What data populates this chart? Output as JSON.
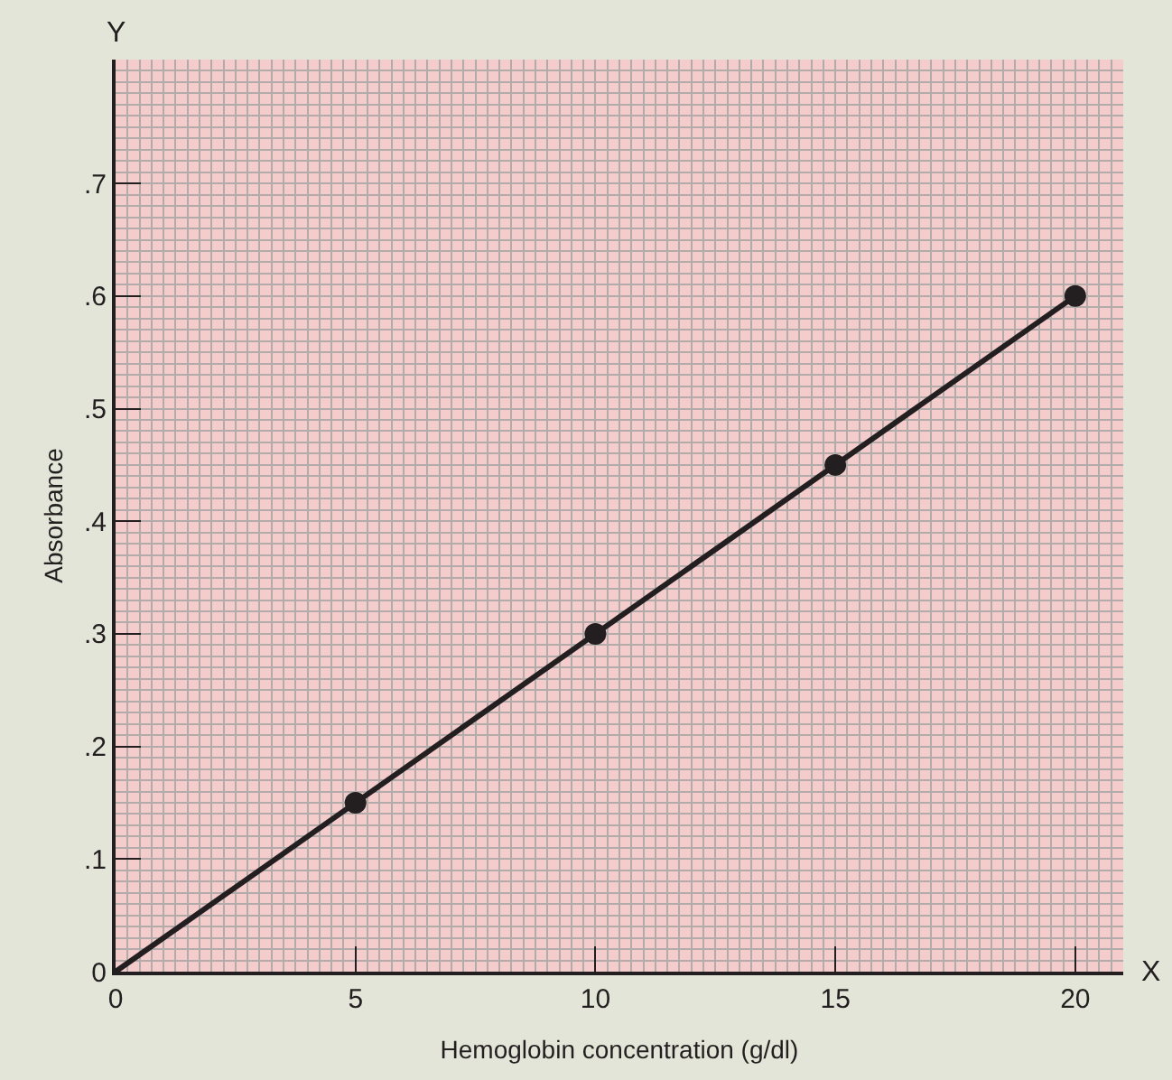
{
  "chart_data": {
    "type": "line",
    "xlabel": "Hemoglobin concentration (g/dl)",
    "ylabel": "Absorbance",
    "annotations": [
      "Y",
      "X"
    ],
    "xlim": [
      0,
      21
    ],
    "ylim": [
      0,
      0.81
    ],
    "xticks": [
      0,
      5,
      10,
      15,
      20
    ],
    "yticks": [
      0,
      {
        "value": 0.1,
        "label": ".1"
      },
      {
        "value": 0.2,
        "label": ".2"
      },
      {
        "value": 0.3,
        "label": ".3"
      },
      {
        "value": 0.4,
        "label": ".4"
      },
      {
        "value": 0.5,
        "label": ".5"
      },
      {
        "value": 0.6,
        "label": ".6"
      },
      {
        "value": 0.7,
        "label": ".7"
      }
    ],
    "grid": true,
    "series": [
      {
        "color": "#231f20",
        "x": [
          0,
          20
        ],
        "values": [
          0,
          0.6
        ],
        "marker": "none",
        "line_style": "solid"
      },
      {
        "type": "scatter",
        "color": "#231f20",
        "x": [
          5,
          10,
          15,
          20
        ],
        "values": [
          0.15,
          0.3,
          0.45,
          0.6
        ],
        "marker": "circle"
      }
    ]
  }
}
